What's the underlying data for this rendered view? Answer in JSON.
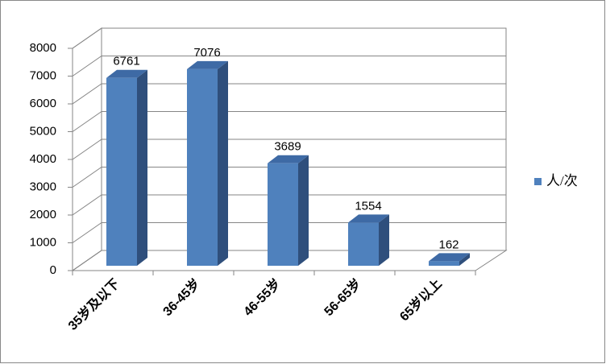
{
  "chart_data": {
    "type": "bar3d",
    "categories": [
      "35岁及以下",
      "36-45岁",
      "46-55岁",
      "56-65岁",
      "65岁以上"
    ],
    "series": [
      {
        "name": "人/次",
        "color": "#4f81bd",
        "values": [
          6761,
          7076,
          3689,
          1554,
          162
        ]
      }
    ],
    "ylim": [
      0,
      8000
    ],
    "yticks": [
      0,
      1000,
      2000,
      3000,
      4000,
      5000,
      6000,
      7000,
      8000
    ],
    "grid": true,
    "legend": "right"
  }
}
